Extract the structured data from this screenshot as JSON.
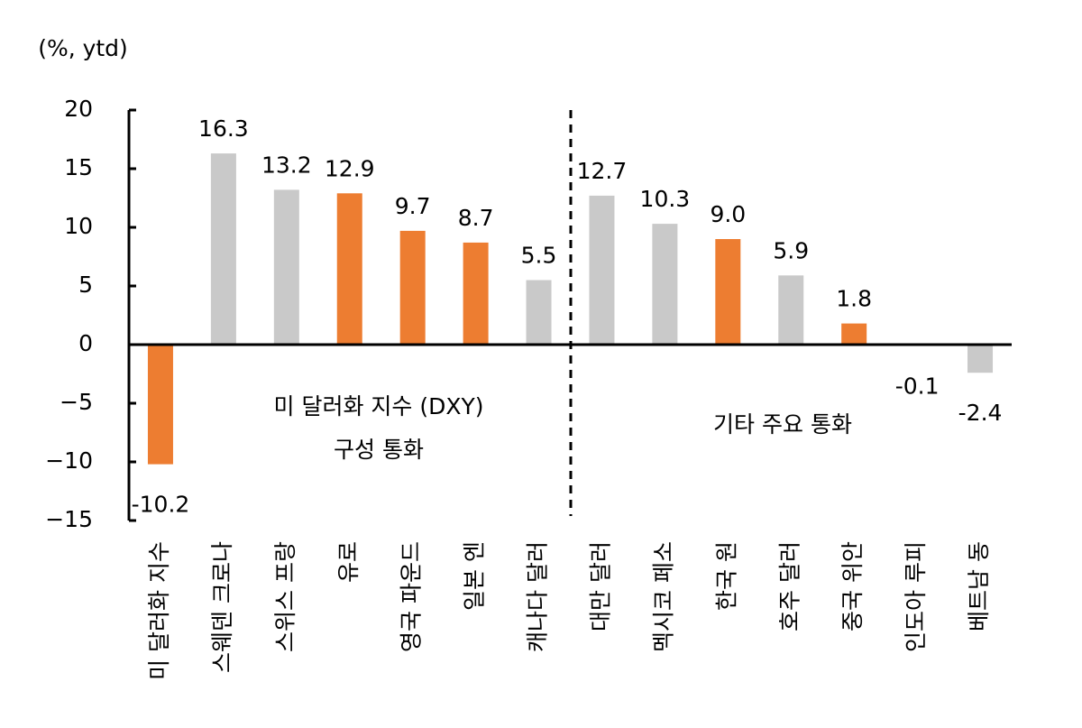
{
  "chart_data": {
    "type": "bar",
    "unit_label": "(%, ytd)",
    "categories": [
      "미 달러화 지수",
      "스웨덴 크로나",
      "스위스 프랑",
      "유로",
      "영국 파운드",
      "일본 엔",
      "캐나다 달러",
      "대만 달러",
      "멕시코 페소",
      "한국 원",
      "호주 달러",
      "중국 위안",
      "인도아 루피",
      "베트남 동"
    ],
    "values": [
      -10.2,
      16.3,
      13.2,
      12.9,
      9.7,
      8.7,
      5.5,
      12.7,
      10.3,
      9.0,
      5.9,
      1.8,
      -0.1,
      -2.4
    ],
    "value_labels": [
      "-10.2",
      "16.3",
      "13.2",
      "12.9",
      "9.7",
      "8.7",
      "5.5",
      "12.7",
      "10.3",
      "9.0",
      "5.9",
      "1.8",
      "-0.1",
      "-2.4"
    ],
    "colors": [
      "#ED7D31",
      "#C9C9C9",
      "#C9C9C9",
      "#ED7D31",
      "#ED7D31",
      "#ED7D31",
      "#C9C9C9",
      "#C9C9C9",
      "#C9C9C9",
      "#ED7D31",
      "#C9C9C9",
      "#ED7D31",
      "#C9C9C9",
      "#C9C9C9"
    ],
    "ylim": [
      -15,
      20
    ],
    "yticks": [
      {
        "value": -15,
        "label": "−15"
      },
      {
        "value": -10,
        "label": "−10"
      },
      {
        "value": -5,
        "label": "−5"
      },
      0,
      5,
      10,
      15,
      20
    ],
    "annotations": [
      "미 달러화 지수 (DXY)",
      "구성 통화",
      "기타 주요 통화"
    ]
  }
}
